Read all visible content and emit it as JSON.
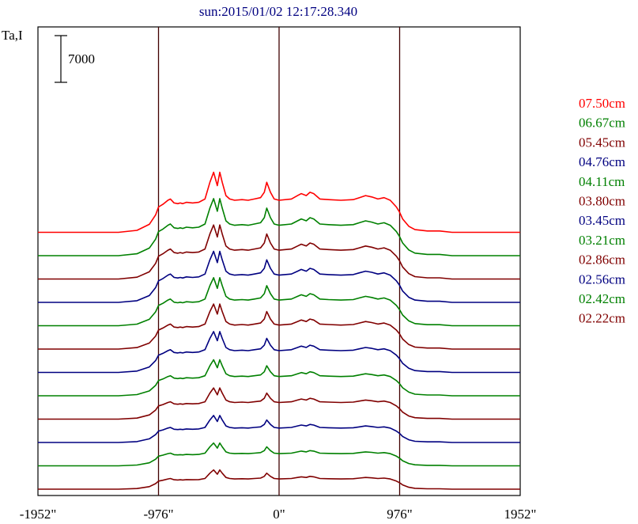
{
  "chart_data": {
    "type": "line",
    "title": "sun:2015/01/02 12:17:28.340",
    "ylabel": "Ta,I",
    "xlabel": "",
    "xlim": [
      -1952,
      1952
    ],
    "x_ticks": [
      {
        "value": -1952,
        "label": "-1952\""
      },
      {
        "value": -976,
        "label": "-976\""
      },
      {
        "value": 0,
        "label": "0\""
      },
      {
        "value": 976,
        "label": "976\""
      },
      {
        "value": 1952,
        "label": "1952\""
      }
    ],
    "vertical_lines": [
      -976,
      0,
      976
    ],
    "scale_bar": {
      "label": "7000",
      "value": 7000
    },
    "grid": false,
    "legend_position": "right",
    "note": "",
    "series": [
      {
        "name": "07.50cm",
        "color": "#ff0000",
        "offset": 39000,
        "amplitude": 1.0
      },
      {
        "name": "06.67cm",
        "color": "#008000",
        "offset": 35500,
        "amplitude": 0.95
      },
      {
        "name": "05.45cm",
        "color": "#800000",
        "offset": 32000,
        "amplitude": 0.9
      },
      {
        "name": "04.76cm",
        "color": "#000080",
        "offset": 28500,
        "amplitude": 0.85
      },
      {
        "name": "04.11cm",
        "color": "#008000",
        "offset": 25000,
        "amplitude": 0.8
      },
      {
        "name": "03.80cm",
        "color": "#800000",
        "offset": 21500,
        "amplitude": 0.75
      },
      {
        "name": "03.45cm",
        "color": "#000080",
        "offset": 18000,
        "amplitude": 0.68
      },
      {
        "name": "03.21cm",
        "color": "#008000",
        "offset": 14500,
        "amplitude": 0.6
      },
      {
        "name": "02.86cm",
        "color": "#800000",
        "offset": 11000,
        "amplitude": 0.52
      },
      {
        "name": "02.56cm",
        "color": "#000080",
        "offset": 7500,
        "amplitude": 0.45
      },
      {
        "name": "02.42cm",
        "color": "#008000",
        "offset": 4000,
        "amplitude": 0.38
      },
      {
        "name": "02.22cm",
        "color": "#800000",
        "offset": 500,
        "amplitude": 0.32
      }
    ],
    "profile": {
      "x": [
        -1952,
        -1300,
        -1150,
        -1050,
        -1000,
        -976,
        -940,
        -900,
        -880,
        -850,
        -820,
        -800,
        -780,
        -750,
        -700,
        -650,
        -600,
        -560,
        -530,
        -500,
        -480,
        -460,
        -430,
        -400,
        -360,
        -300,
        -250,
        -200,
        -150,
        -120,
        -100,
        -70,
        -40,
        0,
        100,
        150,
        180,
        220,
        250,
        280,
        330,
        400,
        500,
        600,
        650,
        700,
        750,
        800,
        850,
        900,
        950,
        976,
        1000,
        1050,
        1100,
        1200,
        1300,
        1400,
        1600,
        1800,
        1952
      ],
      "y": [
        0,
        0,
        300,
        1200,
        2600,
        3800,
        4200,
        4800,
        5000,
        4400,
        4300,
        4400,
        4300,
        4500,
        4400,
        4500,
        5000,
        7500,
        9000,
        7000,
        9000,
        7500,
        5500,
        5000,
        4800,
        4900,
        4800,
        5000,
        5200,
        6000,
        7500,
        6000,
        5000,
        4800,
        5000,
        5500,
        5800,
        5500,
        6000,
        5800,
        5000,
        4900,
        4800,
        4900,
        5200,
        5500,
        5300,
        5000,
        5200,
        4800,
        3800,
        3000,
        2000,
        900,
        400,
        200,
        200,
        0,
        0,
        0,
        0
      ]
    }
  }
}
